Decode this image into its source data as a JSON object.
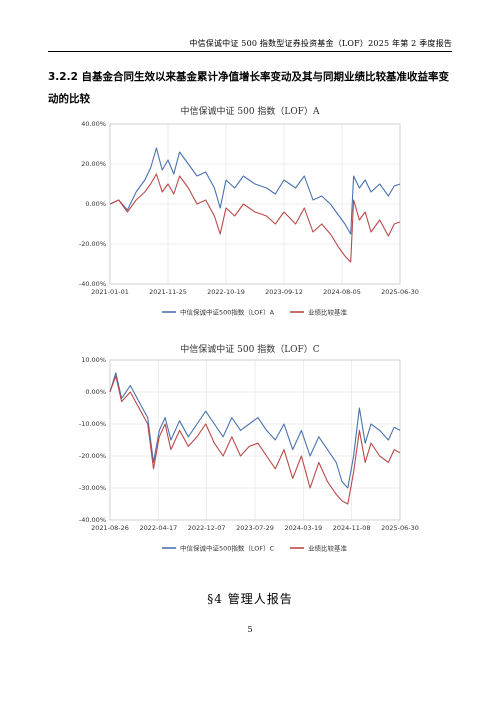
{
  "header": {
    "running_title": "中信保诚中证 500 指数型证券投资基金（LOF）2025 年第 2 季度报告"
  },
  "section": {
    "heading": "3.2.2 自基金合同生效以来基金累计净值增长率变动及其与同期业绩比较基准收益率变动的比较"
  },
  "chart_data": [
    {
      "type": "line",
      "title": "中信保诚中证 500 指数（LOF）A",
      "xlabel": "",
      "ylabel": "",
      "x_tick_labels": [
        "2021-01-01",
        "2021-11-25",
        "2022-10-19",
        "2023-09-12",
        "2024-08-05",
        "2025-06-30"
      ],
      "y_tick_labels": [
        "40.00%",
        "20.00%",
        "0.00%",
        "-20.00%",
        "-40.00%"
      ],
      "ylim": [
        -40,
        40
      ],
      "grid": true,
      "legend": "bottom",
      "series": [
        {
          "name": "中信保诚中证500指数（LOF）A",
          "color": "#4a72b0",
          "x": [
            0,
            0.03,
            0.06,
            0.09,
            0.12,
            0.14,
            0.16,
            0.18,
            0.2,
            0.22,
            0.24,
            0.27,
            0.3,
            0.33,
            0.36,
            0.38,
            0.4,
            0.43,
            0.46,
            0.5,
            0.54,
            0.57,
            0.6,
            0.64,
            0.67,
            0.7,
            0.73,
            0.76,
            0.79,
            0.81,
            0.83,
            0.84,
            0.86,
            0.88,
            0.9,
            0.93,
            0.96,
            0.98,
            1.0
          ],
          "values": [
            0,
            2,
            -3,
            6,
            12,
            18,
            28,
            17,
            22,
            15,
            26,
            20,
            14,
            16,
            8,
            -2,
            12,
            8,
            14,
            10,
            8,
            5,
            12,
            8,
            14,
            2,
            4,
            0,
            -6,
            -10,
            -15,
            14,
            8,
            12,
            6,
            10,
            4,
            9,
            10
          ]
        },
        {
          "name": "业绩比较基准",
          "color": "#b94a48",
          "x": [
            0,
            0.03,
            0.06,
            0.09,
            0.12,
            0.14,
            0.16,
            0.18,
            0.2,
            0.22,
            0.24,
            0.27,
            0.3,
            0.33,
            0.36,
            0.38,
            0.4,
            0.43,
            0.46,
            0.5,
            0.54,
            0.57,
            0.6,
            0.64,
            0.67,
            0.7,
            0.73,
            0.76,
            0.79,
            0.81,
            0.83,
            0.84,
            0.86,
            0.88,
            0.9,
            0.93,
            0.96,
            0.98,
            1.0
          ],
          "values": [
            0,
            2,
            -4,
            2,
            6,
            10,
            15,
            6,
            10,
            5,
            14,
            8,
            0,
            2,
            -6,
            -15,
            -2,
            -6,
            0,
            -4,
            -6,
            -10,
            -4,
            -10,
            -2,
            -14,
            -10,
            -15,
            -22,
            -26,
            -29,
            2,
            -8,
            -4,
            -14,
            -8,
            -16,
            -10,
            -9
          ]
        }
      ]
    },
    {
      "type": "line",
      "title": "中信保诚中证 500 指数（LOF）C",
      "xlabel": "",
      "ylabel": "",
      "x_tick_labels": [
        "2021-08-26",
        "2022-04-17",
        "2022-12-07",
        "2023-07-29",
        "2024-03-19",
        "2024-11-08",
        "2025-06-30"
      ],
      "y_tick_labels": [
        "10.00%",
        "0.00%",
        "-10.00%",
        "-20.00%",
        "-30.00%",
        "-40.00%"
      ],
      "ylim": [
        -40,
        10
      ],
      "grid": true,
      "legend": "bottom",
      "series": [
        {
          "name": "中信保诚中证500指数（LOF）C",
          "color": "#4a72b0",
          "x": [
            0,
            0.02,
            0.04,
            0.07,
            0.1,
            0.13,
            0.15,
            0.17,
            0.19,
            0.21,
            0.24,
            0.27,
            0.3,
            0.33,
            0.36,
            0.39,
            0.42,
            0.45,
            0.48,
            0.51,
            0.54,
            0.57,
            0.6,
            0.63,
            0.66,
            0.69,
            0.72,
            0.75,
            0.78,
            0.8,
            0.82,
            0.84,
            0.86,
            0.88,
            0.9,
            0.93,
            0.96,
            0.98,
            1.0
          ],
          "values": [
            0,
            6,
            -2,
            2,
            -3,
            -8,
            -22,
            -12,
            -8,
            -15,
            -9,
            -14,
            -10,
            -6,
            -10,
            -14,
            -8,
            -12,
            -10,
            -8,
            -12,
            -15,
            -10,
            -18,
            -12,
            -20,
            -14,
            -18,
            -22,
            -28,
            -30,
            -20,
            -5,
            -16,
            -10,
            -12,
            -15,
            -11,
            -12
          ]
        },
        {
          "name": "业绩比较基准",
          "color": "#b94a48",
          "x": [
            0,
            0.02,
            0.04,
            0.07,
            0.1,
            0.13,
            0.15,
            0.17,
            0.19,
            0.21,
            0.24,
            0.27,
            0.3,
            0.33,
            0.36,
            0.39,
            0.42,
            0.45,
            0.48,
            0.51,
            0.54,
            0.57,
            0.6,
            0.63,
            0.66,
            0.69,
            0.72,
            0.75,
            0.78,
            0.8,
            0.82,
            0.84,
            0.86,
            0.88,
            0.9,
            0.93,
            0.96,
            0.98,
            1.0
          ],
          "values": [
            0,
            5,
            -3,
            0,
            -5,
            -10,
            -24,
            -14,
            -10,
            -18,
            -12,
            -17,
            -14,
            -10,
            -16,
            -20,
            -14,
            -20,
            -17,
            -16,
            -20,
            -24,
            -18,
            -27,
            -20,
            -30,
            -22,
            -28,
            -32,
            -34,
            -35,
            -25,
            -12,
            -22,
            -16,
            -20,
            -22,
            -18,
            -19
          ]
        }
      ]
    }
  ],
  "chapter": {
    "heading": "§4  管理人报告"
  },
  "page": {
    "number": "5"
  }
}
